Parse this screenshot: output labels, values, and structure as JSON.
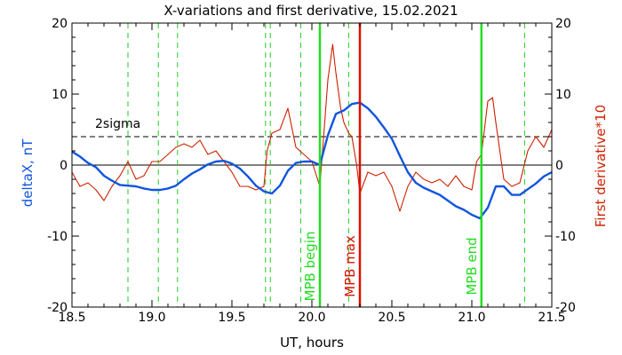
{
  "chart_data": {
    "type": "line",
    "title": "X-variations and first derivative, 15.02.2021",
    "xlabel": "UT, hours",
    "ylabel_left": "deltaX, nT",
    "ylabel_right": "First derivative*10",
    "xlim": [
      18.5,
      21.5
    ],
    "ylim": [
      -20,
      20
    ],
    "ylim_right": [
      -20,
      20
    ],
    "x_ticks": [
      "18.5",
      "19.0",
      "19.5",
      "20.0",
      "20.5",
      "21.0",
      "21.5"
    ],
    "y_ticks": [
      "20",
      "10",
      "0",
      "-10",
      "-20"
    ],
    "y_ticks_right": [
      "20",
      "10",
      "0",
      "-10",
      "-20"
    ],
    "threshold": {
      "label": "2sigma",
      "value": 4
    },
    "dashed_markers": [
      18.85,
      19.04,
      19.16,
      19.71,
      19.74,
      19.93,
      20.23,
      21.33
    ],
    "event_markers": [
      {
        "label": "MPB begin",
        "x": 20.05,
        "color": "#22dd22"
      },
      {
        "label": "MPB max",
        "x": 20.3,
        "color": "#dd1100"
      },
      {
        "label": "MPB end",
        "x": 21.06,
        "color": "#22dd22"
      }
    ],
    "colors": {
      "deltaX": "#1155dd",
      "derivative": "#cc2200",
      "dashed": "#22cc22"
    },
    "series": [
      {
        "name": "deltaX, nT",
        "axis": "left",
        "x": [
          18.5,
          18.55,
          18.6,
          18.65,
          18.7,
          18.75,
          18.8,
          18.85,
          18.9,
          18.95,
          19.0,
          19.05,
          19.1,
          19.15,
          19.2,
          19.25,
          19.3,
          19.35,
          19.4,
          19.45,
          19.5,
          19.55,
          19.6,
          19.65,
          19.7,
          19.75,
          19.8,
          19.85,
          19.9,
          19.95,
          20.0,
          20.05,
          20.1,
          20.15,
          20.2,
          20.25,
          20.3,
          20.35,
          20.4,
          20.45,
          20.5,
          20.55,
          20.6,
          20.65,
          20.7,
          20.75,
          20.8,
          20.85,
          20.9,
          20.95,
          21.0,
          21.05,
          21.1,
          21.15,
          21.2,
          21.25,
          21.3,
          21.35,
          21.4,
          21.45,
          21.5
        ],
        "y": [
          1.9,
          1.2,
          0.3,
          -0.3,
          -1.5,
          -2.2,
          -2.8,
          -2.9,
          -3.0,
          -3.3,
          -3.5,
          -3.5,
          -3.3,
          -2.9,
          -2.0,
          -1.2,
          -0.6,
          0.1,
          0.5,
          0.6,
          0.2,
          -0.5,
          -1.6,
          -2.9,
          -3.7,
          -4.0,
          -2.9,
          -0.8,
          0.3,
          0.5,
          0.5,
          0.0,
          4.2,
          7.2,
          7.7,
          8.6,
          8.8,
          8.0,
          6.8,
          5.3,
          3.7,
          1.3,
          -1.0,
          -2.5,
          -3.2,
          -3.7,
          -4.2,
          -5.0,
          -5.8,
          -6.3,
          -7.0,
          -7.5,
          -6.0,
          -3.0,
          -3.0,
          -4.2,
          -4.2,
          -3.4,
          -2.6,
          -1.6,
          -1.0
        ]
      },
      {
        "name": "First derivative*10",
        "axis": "right",
        "x": [
          18.5,
          18.55,
          18.6,
          18.65,
          18.7,
          18.75,
          18.8,
          18.85,
          18.9,
          18.95,
          19.0,
          19.05,
          19.1,
          19.15,
          19.2,
          19.25,
          19.3,
          19.35,
          19.4,
          19.45,
          19.5,
          19.55,
          19.6,
          19.65,
          19.7,
          19.72,
          19.75,
          19.8,
          19.85,
          19.9,
          19.95,
          20.0,
          20.05,
          20.1,
          20.13,
          20.15,
          20.18,
          20.2,
          20.23,
          20.25,
          20.28,
          20.3,
          20.35,
          20.4,
          20.45,
          20.5,
          20.55,
          20.6,
          20.65,
          20.7,
          20.75,
          20.8,
          20.85,
          20.9,
          20.95,
          21.0,
          21.03,
          21.06,
          21.1,
          21.13,
          21.15,
          21.2,
          21.25,
          21.3,
          21.35,
          21.4,
          21.45,
          21.5
        ],
        "y": [
          -1.0,
          -3.0,
          -2.5,
          -3.5,
          -5.0,
          -3.0,
          -1.5,
          0.5,
          -2.0,
          -1.5,
          0.5,
          0.5,
          1.5,
          2.5,
          3.0,
          2.5,
          3.5,
          1.5,
          2.0,
          0.5,
          -1.0,
          -3.0,
          -3.0,
          -3.5,
          -3.0,
          2.0,
          4.5,
          5.0,
          8.0,
          2.5,
          1.5,
          0.5,
          -3.0,
          12.0,
          17.0,
          13.0,
          8.0,
          6.0,
          4.5,
          4.0,
          0.0,
          -4.0,
          -1.0,
          -1.5,
          -1.0,
          -3.0,
          -6.5,
          -3.0,
          -1.0,
          -2.0,
          -2.5,
          -2.0,
          -3.0,
          -1.5,
          -3.0,
          -3.5,
          0.5,
          1.5,
          9.0,
          9.5,
          6.0,
          -2.0,
          -3.0,
          -2.5,
          2.0,
          4.0,
          2.5,
          5.0
        ]
      }
    ]
  }
}
